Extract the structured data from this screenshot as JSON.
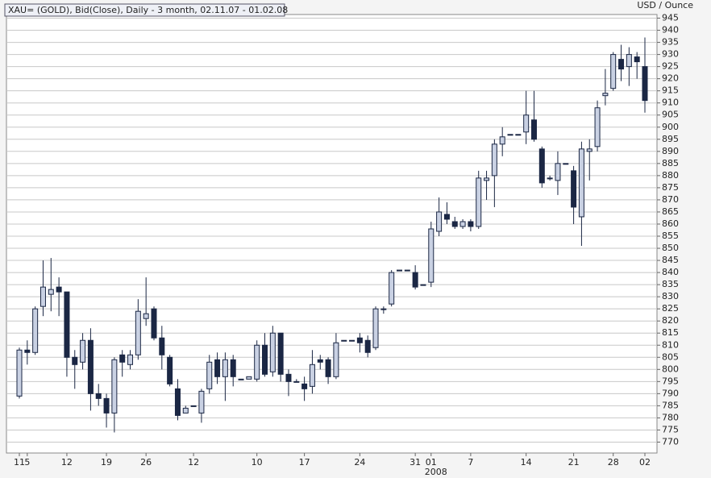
{
  "chart_data": {
    "type": "candlestick",
    "title": "XAU= (GOLD), Bid(Close), Daily - 3 month, 02.11.07 - 01.02.08",
    "y_label": "USD / Ounce",
    "year_label": "2008",
    "categories": [
      "11",
      "5",
      null,
      null,
      null,
      null,
      "12",
      null,
      null,
      null,
      null,
      "19",
      null,
      null,
      null,
      null,
      "26",
      null,
      null,
      null,
      null,
      null,
      "12",
      null,
      null,
      null,
      null,
      null,
      null,
      null,
      "10",
      null,
      null,
      null,
      null,
      null,
      "17",
      null,
      null,
      null,
      null,
      null,
      null,
      "24",
      null,
      null,
      null,
      null,
      null,
      null,
      "31",
      null,
      "01",
      null,
      null,
      null,
      null,
      "7",
      null,
      null,
      null,
      null,
      null,
      null,
      "14",
      null,
      null,
      null,
      null,
      null,
      "21",
      null,
      null,
      null,
      null,
      "28",
      null,
      null,
      null,
      "02"
    ],
    "open": [
      789,
      808,
      807,
      826,
      831,
      834,
      832,
      805,
      803,
      812,
      790,
      788,
      782,
      806,
      802,
      806,
      821,
      825,
      813,
      805,
      792,
      782,
      785,
      782,
      792,
      804,
      797,
      804,
      796,
      796,
      796,
      810,
      799,
      815,
      798,
      795,
      794,
      793,
      804,
      804,
      797,
      812,
      812,
      813,
      812,
      809,
      825,
      827,
      841,
      841,
      840,
      835,
      836,
      857,
      864,
      861,
      859,
      861,
      859,
      878,
      880,
      893,
      897,
      897,
      898,
      903,
      891,
      879,
      878,
      885,
      882,
      863,
      890,
      892,
      913,
      916,
      928,
      925,
      929,
      925
    ],
    "high": [
      809,
      812,
      826,
      845,
      846,
      838,
      832,
      808,
      815,
      817,
      794,
      790,
      805,
      808,
      808,
      829,
      838,
      826,
      818,
      806,
      796,
      785,
      785,
      792,
      806,
      807,
      807,
      806,
      796,
      797,
      812,
      815,
      818,
      815,
      800,
      796,
      797,
      808,
      806,
      805,
      815,
      812,
      812,
      815,
      814,
      826,
      826,
      841,
      841,
      841,
      843,
      835,
      861,
      871,
      869,
      863,
      862,
      862,
      882,
      882,
      895,
      900,
      897,
      897,
      915,
      915,
      892,
      880,
      890,
      885,
      884,
      894,
      895,
      911,
      924,
      931,
      934,
      933,
      931,
      937
    ],
    "low": [
      788,
      802,
      806,
      822,
      824,
      822,
      797,
      792,
      800,
      783,
      785,
      776,
      774,
      797,
      800,
      804,
      818,
      812,
      800,
      793,
      779,
      782,
      785,
      778,
      790,
      794,
      787,
      793,
      796,
      796,
      795,
      797,
      797,
      795,
      789,
      795,
      787,
      790,
      800,
      794,
      796,
      812,
      812,
      807,
      805,
      808,
      823,
      826,
      841,
      841,
      833,
      835,
      834,
      855,
      860,
      858,
      858,
      857,
      858,
      870,
      867,
      888,
      897,
      897,
      893,
      894,
      875,
      878,
      872,
      885,
      860,
      851,
      878,
      890,
      909,
      915,
      919,
      917,
      920,
      906
    ],
    "close": [
      808,
      807,
      825,
      834,
      833,
      832,
      805,
      802,
      812,
      790,
      788,
      782,
      804,
      803,
      806,
      824,
      823,
      813,
      806,
      794,
      781,
      784,
      785,
      791,
      803,
      797,
      804,
      797,
      796,
      797,
      810,
      798,
      815,
      798,
      795,
      795,
      792,
      802,
      803,
      797,
      811,
      812,
      812,
      811,
      807,
      825,
      825,
      840,
      841,
      841,
      834,
      835,
      858,
      865,
      862,
      859,
      861,
      859,
      879,
      879,
      893,
      896,
      897,
      897,
      905,
      895,
      877,
      879,
      885,
      885,
      867,
      891,
      891,
      908,
      914,
      930,
      924,
      930,
      927,
      911
    ],
    "ylim": [
      765.5,
      946.5
    ],
    "yticks": [
      770,
      775,
      780,
      785,
      790,
      795,
      800,
      805,
      810,
      815,
      820,
      825,
      830,
      835,
      840,
      845,
      850,
      855,
      860,
      865,
      870,
      875,
      880,
      885,
      890,
      895,
      900,
      905,
      910,
      915,
      920,
      925,
      930,
      935,
      940,
      945
    ],
    "grid": true,
    "up_color": "#c9d1e3",
    "down_color": "#1b2744",
    "edge_color": "#1b2744"
  }
}
